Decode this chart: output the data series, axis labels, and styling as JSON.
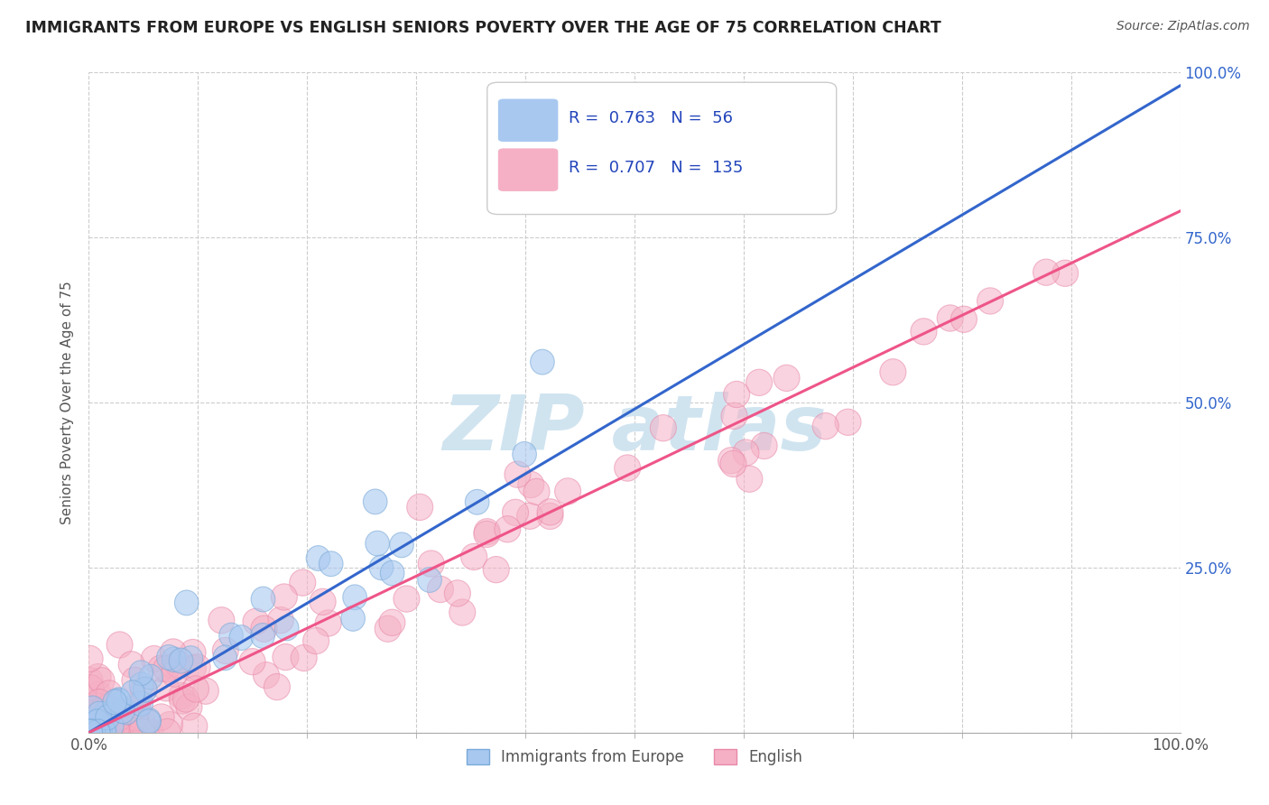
{
  "title": "IMMIGRANTS FROM EUROPE VS ENGLISH SENIORS POVERTY OVER THE AGE OF 75 CORRELATION CHART",
  "source": "Source: ZipAtlas.com",
  "ylabel": "Seniors Poverty Over the Age of 75",
  "xlim": [
    0.0,
    1.0
  ],
  "ylim": [
    0.0,
    1.0
  ],
  "xticks_major": [
    0.0,
    1.0
  ],
  "xticks_minor": [
    0.0,
    0.1,
    0.2,
    0.3,
    0.4,
    0.5,
    0.6,
    0.7,
    0.8,
    0.9,
    1.0
  ],
  "xticklabels_major": [
    "0.0%",
    "100.0%"
  ],
  "yticks_grid": [
    0.0,
    0.25,
    0.5,
    0.75,
    1.0
  ],
  "ytick_labels_right": [
    "",
    "25.0%",
    "50.0%",
    "75.0%",
    "100.0%"
  ],
  "blue_R": 0.763,
  "blue_N": 56,
  "pink_R": 0.707,
  "pink_N": 135,
  "blue_color": "#a8c8f0",
  "pink_color": "#f5b0c5",
  "blue_edge_color": "#7aaad8",
  "pink_edge_color": "#e888a8",
  "blue_line_color": "#3366cc",
  "pink_line_color": "#ee5588",
  "watermark_color": "#d0e4f0",
  "background_color": "#ffffff",
  "grid_color": "#cccccc",
  "title_color": "#222222",
  "label_color": "#555555",
  "legend_text_color": "#2244bb",
  "right_tick_color": "#3366cc",
  "blue_slope": 0.98,
  "blue_intercept": 0.0,
  "pink_slope": 0.79,
  "pink_intercept": 0.0,
  "seed": 42
}
